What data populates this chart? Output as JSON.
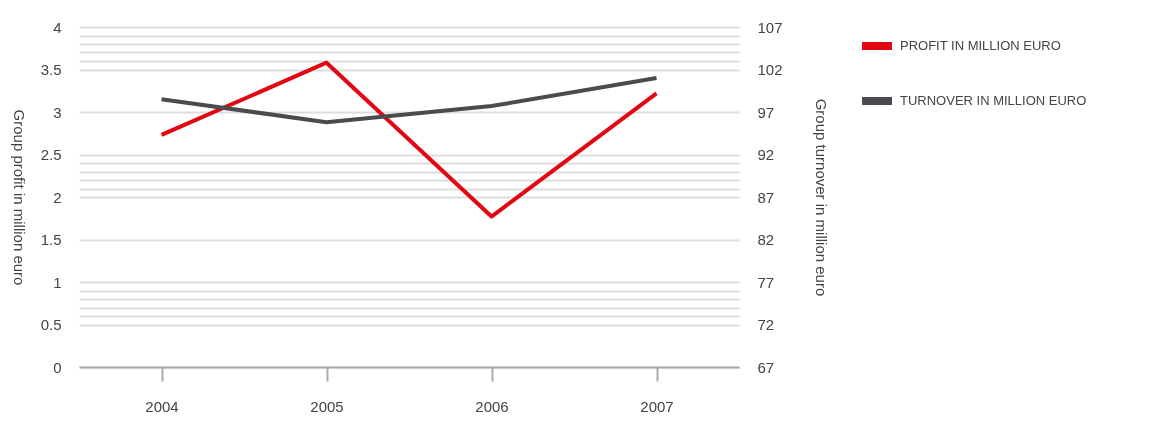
{
  "chart_data": {
    "type": "line",
    "categories": [
      "2004",
      "2005",
      "2006",
      "2007"
    ],
    "series": [
      {
        "name": "PROFIT IN MILLION EURO",
        "color": "#e30613",
        "values": [
          2.73,
          3.58,
          1.77,
          3.22
        ]
      },
      {
        "name": "TURNOVER IN MILLION EURO",
        "color": "#4a4a4f",
        "values": [
          98.5,
          95.8,
          97.7,
          101.0
        ],
        "axis": "y2"
      }
    ],
    "ylabel": "Group profit in million euro",
    "y2label": "Group turnover in million euro",
    "ylim": [
      0,
      4
    ],
    "yticks": [
      0,
      {
        "value": 0.6,
        "label": null
      },
      {
        "value": 0.7,
        "label": null
      },
      {
        "value": 0.8,
        "label": null
      },
      {
        "value": 0.9,
        "label": null
      },
      0.5,
      1,
      1.5,
      2,
      {
        "value": 2.1,
        "label": null
      },
      {
        "value": 2.2,
        "label": null
      },
      {
        "value": 2.3,
        "label": null
      },
      {
        "value": 2.4,
        "label": null
      },
      2.5,
      3,
      3.5,
      {
        "value": 3.6,
        "label": null
      },
      {
        "value": 3.7,
        "label": null
      },
      {
        "value": 3.8,
        "label": null
      },
      {
        "value": 3.9,
        "label": null
      },
      4
    ],
    "y2lim": [
      67,
      107
    ],
    "y2ticks": [
      67,
      72,
      77,
      82,
      87,
      92,
      97,
      102,
      107
    ],
    "grid": "y",
    "legend": "right",
    "marker": "none",
    "line_style": "solid"
  }
}
